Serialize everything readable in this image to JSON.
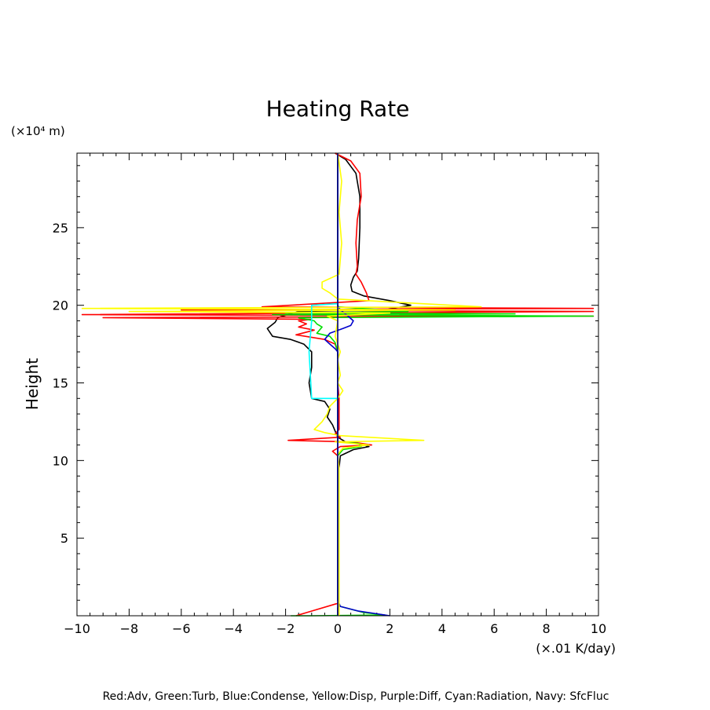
{
  "chart_data": {
    "type": "line",
    "title": "Heating Rate",
    "ylabel": "Height",
    "y_unit_label": "(×10⁴ m)",
    "x_unit_label": "(×.01 K/day)",
    "xlim": [
      -10,
      10
    ],
    "ylim": [
      0,
      29.8
    ],
    "x_ticks": [
      -10,
      -8,
      -6,
      -4,
      -2,
      0,
      2,
      4,
      6,
      8,
      10
    ],
    "x_tick_labels": [
      "−10",
      "−8",
      "−6",
      "−4",
      "−2",
      "0",
      "2",
      "4",
      "6",
      "8",
      "10"
    ],
    "y_ticks": [
      5,
      10,
      15,
      20,
      25
    ],
    "y_tick_labels": [
      "5",
      "10",
      "15",
      "20",
      "25"
    ],
    "grid": false,
    "legend_text": "Red:Adv, Green:Turb, Blue:Condense, Yellow:Disp, Purple:Diff, Cyan:Radiation, Navy: SfcFluc",
    "series": [
      {
        "color": "#000000",
        "points": [
          [
            -0.1,
            29.8
          ],
          [
            0.3,
            29.4
          ],
          [
            0.7,
            28.5
          ],
          [
            0.85,
            27.0
          ],
          [
            0.85,
            25.0
          ],
          [
            0.8,
            23.0
          ],
          [
            0.75,
            22.2
          ],
          [
            0.6,
            21.8
          ],
          [
            0.5,
            21.3
          ],
          [
            0.55,
            20.9
          ],
          [
            1.0,
            20.6
          ],
          [
            2.0,
            20.3
          ],
          [
            2.8,
            20.0
          ],
          [
            1.8,
            19.7
          ],
          [
            -1.5,
            19.6
          ],
          [
            -2.3,
            19.2
          ],
          [
            -2.4,
            18.9
          ],
          [
            -2.7,
            18.5
          ],
          [
            -2.5,
            18.0
          ],
          [
            -1.8,
            17.8
          ],
          [
            -1.3,
            17.5
          ],
          [
            -1.0,
            17.0
          ],
          [
            -1.0,
            16.0
          ],
          [
            -1.1,
            15.0
          ],
          [
            -1.0,
            14.0
          ],
          [
            -0.5,
            13.8
          ],
          [
            -0.3,
            13.3
          ],
          [
            -0.4,
            12.8
          ],
          [
            -0.2,
            12.3
          ],
          [
            0.0,
            11.5
          ],
          [
            0.3,
            11.2
          ],
          [
            0.8,
            11.1
          ],
          [
            1.2,
            10.9
          ],
          [
            0.6,
            10.7
          ],
          [
            0.1,
            10.3
          ],
          [
            0.05,
            9.5
          ],
          [
            0.05,
            5.0
          ],
          [
            0.05,
            1.0
          ],
          [
            0.0,
            0.5
          ],
          [
            0.0,
            0.0
          ]
        ]
      },
      {
        "color": "#ff0000",
        "points": [
          [
            -0.1,
            29.8
          ],
          [
            0.5,
            29.3
          ],
          [
            0.85,
            28.5
          ],
          [
            0.9,
            27.0
          ],
          [
            0.75,
            25.5
          ],
          [
            0.7,
            24.0
          ],
          [
            0.75,
            22.5
          ],
          [
            0.7,
            22.0
          ],
          [
            0.9,
            21.5
          ],
          [
            1.1,
            20.8
          ],
          [
            1.2,
            20.3
          ],
          [
            -2.9,
            19.9
          ],
          [
            9.8,
            19.8
          ],
          [
            -6.0,
            19.7
          ],
          [
            9.8,
            19.6
          ],
          [
            -9.8,
            19.4
          ],
          [
            9.8,
            19.3
          ],
          [
            -9.0,
            19.2
          ],
          [
            -1.0,
            19.1
          ],
          [
            -1.5,
            19.0
          ],
          [
            -1.2,
            18.8
          ],
          [
            -1.5,
            18.6
          ],
          [
            -0.9,
            18.4
          ],
          [
            -1.6,
            18.1
          ],
          [
            -0.5,
            17.8
          ],
          [
            -0.1,
            17.5
          ],
          [
            0.0,
            17.0
          ],
          [
            0.0,
            15.0
          ],
          [
            0.05,
            14.0
          ],
          [
            0.05,
            12.0
          ],
          [
            -0.1,
            11.7
          ],
          [
            0.1,
            11.5
          ],
          [
            -1.9,
            11.3
          ],
          [
            0.5,
            11.2
          ],
          [
            1.3,
            11.0
          ],
          [
            0.1,
            10.9
          ],
          [
            -0.2,
            10.6
          ],
          [
            0.0,
            10.3
          ],
          [
            0.05,
            9.5
          ],
          [
            0.05,
            5.0
          ],
          [
            0.05,
            1.2
          ],
          [
            0.0,
            0.8
          ],
          [
            -1.2,
            0.2
          ],
          [
            -1.6,
            0.0
          ]
        ]
      },
      {
        "color": "#00dd00",
        "points": [
          [
            0.0,
            29.8
          ],
          [
            0.0,
            20.5
          ],
          [
            0.0,
            19.9
          ],
          [
            2.7,
            19.6
          ],
          [
            -2.0,
            19.5
          ],
          [
            6.8,
            19.45
          ],
          [
            -2.5,
            19.4
          ],
          [
            9.8,
            19.3
          ],
          [
            -1.5,
            19.2
          ],
          [
            -0.9,
            19.0
          ],
          [
            -0.8,
            18.8
          ],
          [
            -0.6,
            18.6
          ],
          [
            -0.8,
            18.2
          ],
          [
            -0.3,
            18.0
          ],
          [
            -0.1,
            17.6
          ],
          [
            0.0,
            17.0
          ],
          [
            0.0,
            12.0
          ],
          [
            0.0,
            11.2
          ],
          [
            0.8,
            11.1
          ],
          [
            0.9,
            10.9
          ],
          [
            0.2,
            10.7
          ],
          [
            0.0,
            10.3
          ],
          [
            0.0,
            9.5
          ],
          [
            0.0,
            1.0
          ],
          [
            0.1,
            0.6
          ],
          [
            1.0,
            0.2
          ],
          [
            1.8,
            0.05
          ],
          [
            -1.0,
            0.0
          ],
          [
            -1.8,
            0.0
          ]
        ]
      },
      {
        "color": "#0000cc",
        "points": [
          [
            0.0,
            29.8
          ],
          [
            0.0,
            20.0
          ],
          [
            0.1,
            19.7
          ],
          [
            0.4,
            19.3
          ],
          [
            0.6,
            19.0
          ],
          [
            0.5,
            18.7
          ],
          [
            0.2,
            18.5
          ],
          [
            -0.3,
            18.2
          ],
          [
            -0.5,
            17.8
          ],
          [
            -0.3,
            17.5
          ],
          [
            -0.1,
            17.2
          ],
          [
            0.0,
            17.0
          ],
          [
            0.0,
            1.0
          ],
          [
            0.1,
            0.6
          ],
          [
            0.8,
            0.3
          ],
          [
            1.8,
            0.05
          ],
          [
            2.0,
            0.0
          ]
        ]
      },
      {
        "color": "#ffff00",
        "points": [
          [
            0.0,
            29.8
          ],
          [
            0.15,
            28.0
          ],
          [
            0.05,
            26.0
          ],
          [
            0.15,
            24.0
          ],
          [
            0.05,
            22.0
          ],
          [
            -0.6,
            21.5
          ],
          [
            -0.6,
            21.1
          ],
          [
            -0.3,
            20.8
          ],
          [
            0.0,
            20.4
          ],
          [
            5.5,
            19.9
          ],
          [
            -9.8,
            19.8
          ],
          [
            4.5,
            19.7
          ],
          [
            -8.0,
            19.6
          ],
          [
            2.0,
            19.5
          ],
          [
            -0.4,
            19.3
          ],
          [
            0.0,
            19.0
          ],
          [
            -0.1,
            18.0
          ],
          [
            0.1,
            17.0
          ],
          [
            0.0,
            16.5
          ],
          [
            0.1,
            15.5
          ],
          [
            0.0,
            15.0
          ],
          [
            0.2,
            14.5
          ],
          [
            0.0,
            14.0
          ],
          [
            -0.3,
            13.5
          ],
          [
            -0.4,
            13.0
          ],
          [
            -0.6,
            12.5
          ],
          [
            -0.9,
            12.0
          ],
          [
            -0.5,
            11.8
          ],
          [
            0.1,
            11.6
          ],
          [
            3.3,
            11.3
          ],
          [
            -0.1,
            11.2
          ],
          [
            1.2,
            11.0
          ],
          [
            0.2,
            10.8
          ],
          [
            0.0,
            10.4
          ],
          [
            0.05,
            9.5
          ],
          [
            0.05,
            0.0
          ]
        ]
      },
      {
        "color": "#00ffff",
        "points": [
          [
            0.0,
            20.1
          ],
          [
            -1.0,
            20.0
          ],
          [
            -1.0,
            19.0
          ],
          [
            -1.1,
            17.0
          ],
          [
            -1.0,
            14.0
          ],
          [
            0.0,
            14.0
          ]
        ]
      },
      {
        "color": "#000080",
        "points": [
          [
            0.0,
            29.8
          ],
          [
            0.0,
            0.0
          ]
        ]
      }
    ]
  }
}
